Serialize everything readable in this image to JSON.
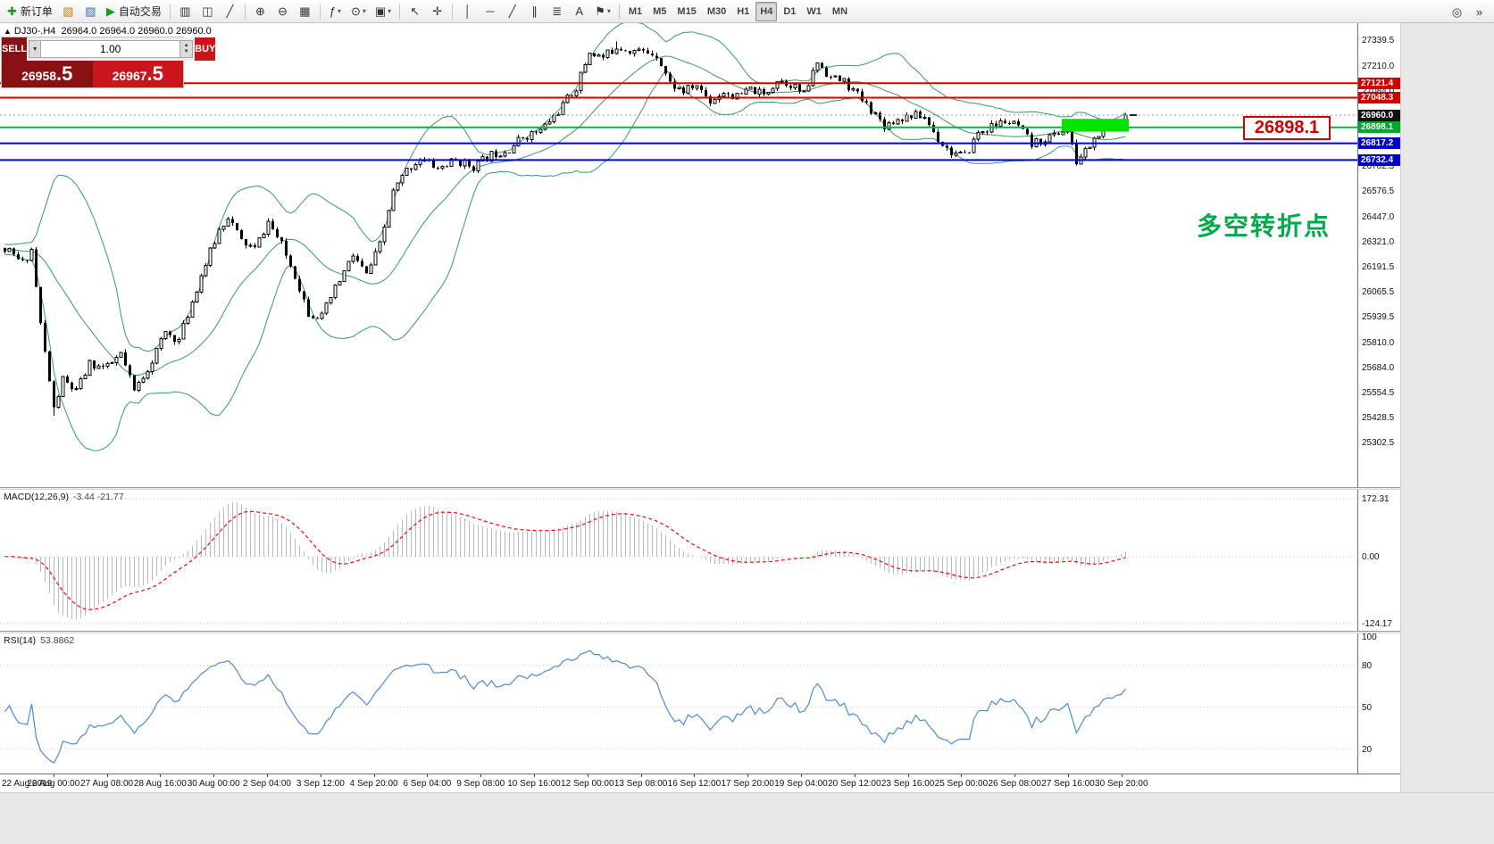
{
  "toolbar": {
    "groups": [
      [
        {
          "name": "new-order-button",
          "icon": "✚",
          "icon_color": "#1a9c1a",
          "icon_name": "new-order-icon",
          "label": "新订单"
        },
        {
          "name": "new-chart-button",
          "icon": "▧",
          "icon_color": "#b8860b",
          "icon_name": "new-chart-icon"
        },
        {
          "name": "profiles-button",
          "icon": "▨",
          "icon_color": "#4169aa",
          "icon_name": "profiles-icon"
        },
        {
          "name": "autotrading-button",
          "icon": "▶",
          "icon_color": "#15a015",
          "icon_name": "autotrading-play-icon",
          "label": "自动交易"
        }
      ],
      [
        {
          "name": "bar-chart-button",
          "icon": "▥",
          "icon_name": "bar-chart-icon"
        },
        {
          "name": "candlestick-chart-button",
          "icon": "◫",
          "icon_name": "candlestick-icon"
        },
        {
          "name": "line-chart-button",
          "icon": "╱",
          "icon_name": "line-chart-icon"
        }
      ],
      [
        {
          "name": "zoom-in-button",
          "icon": "⊕",
          "icon_name": "zoom-in-icon"
        },
        {
          "name": "zoom-out-button",
          "icon": "⊖",
          "icon_name": "zoom-out-icon"
        },
        {
          "name": "tile-windows-button",
          "icon": "▦",
          "icon_name": "tile-windows-icon"
        }
      ],
      [
        {
          "name": "indicators-button",
          "icon": "ƒ",
          "icon_name": "indicators-icon",
          "dropdown": true
        },
        {
          "name": "periods-button",
          "icon": "⊙",
          "icon_name": "clock-icon",
          "dropdown": true
        },
        {
          "name": "templates-button",
          "icon": "▣",
          "icon_name": "template-icon",
          "dropdown": true
        }
      ],
      [
        {
          "name": "cursor-button",
          "icon": "↖",
          "icon_name": "cursor-icon"
        },
        {
          "name": "crosshair-button",
          "icon": "✛",
          "icon_name": "crosshair-icon"
        }
      ],
      [
        {
          "name": "vertical-line-button",
          "icon": "│",
          "icon_name": "vertical-line-icon"
        },
        {
          "name": "horizontal-line-button",
          "icon": "─",
          "icon_name": "horizontal-line-icon"
        },
        {
          "name": "trendline-button",
          "icon": "╱",
          "icon_name": "trendline-icon"
        },
        {
          "name": "channel-button",
          "icon": "∥",
          "icon_name": "channel-icon"
        },
        {
          "name": "fibonacci-button",
          "icon": "≣",
          "icon_name": "fibonacci-icon"
        },
        {
          "name": "text-tool-button",
          "icon": "A",
          "icon_name": "text-tool-icon"
        },
        {
          "name": "arrows-tool-button",
          "icon": "⚑",
          "icon_name": "arrows-tool-icon",
          "dropdown": true
        }
      ],
      [
        {
          "name": "timeframe-m1-button",
          "tf": true,
          "label_only": "M1"
        },
        {
          "name": "timeframe-m5-button",
          "tf": true,
          "label_only": "M5"
        },
        {
          "name": "timeframe-m15-button",
          "tf": true,
          "label_only": "M15"
        },
        {
          "name": "timeframe-m30-button",
          "tf": true,
          "label_only": "M30"
        },
        {
          "name": "timeframe-h1-button",
          "tf": true,
          "label_only": "H1"
        },
        {
          "name": "timeframe-h4-button",
          "tf": true,
          "label_only": "H4",
          "active": true
        },
        {
          "name": "timeframe-d1-button",
          "tf": true,
          "label_only": "D1"
        },
        {
          "name": "timeframe-w1-button",
          "tf": true,
          "label_only": "W1"
        },
        {
          "name": "timeframe-mn-button",
          "tf": true,
          "label_only": "MN"
        }
      ]
    ],
    "right": [
      {
        "name": "toolbar-search-button",
        "icon": "◎",
        "icon_name": "search-icon"
      },
      {
        "name": "toolbar-more-button",
        "icon": "»",
        "icon_name": "overflow-icon"
      }
    ]
  },
  "chart": {
    "symbol_period": "DJ30-.H4",
    "tick_arrow": "▲",
    "ohlc_text": "26964.0 26964.0 26960.0 26960.0",
    "annotation": "多空转折点",
    "big_price_label": "26898.1",
    "trade_panel": {
      "sell_label": "SELL",
      "buy_label": "BUY",
      "volume": "1.00",
      "sell_price_main": "26958",
      "sell_price_big": ".5",
      "buy_price_main": "26967",
      "buy_price_big": ".5"
    },
    "axis_ticks": [
      "27339.5",
      "27210.0",
      "27084.0",
      "26702.5",
      "26576.5",
      "26447.0",
      "26321.0",
      "26191.5",
      "26065.5",
      "25939.5",
      "25810.0",
      "25684.0",
      "25554.5",
      "25428.5",
      "25302.5"
    ],
    "level_badges": [
      {
        "label": "27121.4",
        "color": "#d40000"
      },
      {
        "label": "27048.3",
        "color": "#d40000"
      },
      {
        "label": "26960.0",
        "color": "#111111"
      },
      {
        "label": "26898.1",
        "color": "#00a82d"
      },
      {
        "label": "26817.2",
        "color": "#0000cc"
      },
      {
        "label": "26732.4",
        "color": "#0000cc"
      }
    ],
    "hlines": [
      {
        "price": 27121.4,
        "color": "#d40000",
        "w": 2
      },
      {
        "price": 27048.3,
        "color": "#d40000",
        "w": 2
      },
      {
        "price": 26898.1,
        "color": "#00b83c",
        "w": 2
      },
      {
        "price": 26817.2,
        "color": "#0000dd",
        "w": 2
      },
      {
        "price": 26732.4,
        "color": "#0000dd",
        "w": 2
      }
    ]
  },
  "macd": {
    "label": "MACD(12,26,9)",
    "values": "-3.44 -21.77",
    "axis": [
      "172.31",
      "0.00",
      "-124.17"
    ]
  },
  "rsi": {
    "label": "RSI(14)",
    "value": "53.8862",
    "axis": [
      "100",
      "80",
      "50",
      "20"
    ]
  },
  "chart_data": {
    "type": "candlestick",
    "symbol": "DJ30-",
    "period": "H4",
    "ohlc_current": {
      "open": 26964.0,
      "high": 26964.0,
      "low": 26960.0,
      "close": 26960.0
    },
    "candle_count": 252,
    "y_axis_range": [
      25302.5,
      27339.5
    ],
    "price_path_anchors": [
      [
        0,
        26280
      ],
      [
        4,
        26210
      ],
      [
        6,
        26280
      ],
      [
        8,
        25900
      ],
      [
        11,
        25470
      ],
      [
        13,
        25620
      ],
      [
        16,
        25560
      ],
      [
        19,
        25700
      ],
      [
        23,
        25680
      ],
      [
        26,
        25750
      ],
      [
        29,
        25560
      ],
      [
        33,
        25720
      ],
      [
        36,
        25860
      ],
      [
        39,
        25820
      ],
      [
        44,
        26150
      ],
      [
        48,
        26380
      ],
      [
        50,
        26450
      ],
      [
        53,
        26320
      ],
      [
        56,
        26280
      ],
      [
        59,
        26420
      ],
      [
        62,
        26300
      ],
      [
        65,
        26150
      ],
      [
        68,
        25960
      ],
      [
        71,
        25940
      ],
      [
        74,
        26080
      ],
      [
        78,
        26250
      ],
      [
        81,
        26150
      ],
      [
        84,
        26300
      ],
      [
        87,
        26570
      ],
      [
        90,
        26680
      ],
      [
        93,
        26740
      ],
      [
        97,
        26690
      ],
      [
        101,
        26730
      ],
      [
        105,
        26700
      ],
      [
        109,
        26760
      ],
      [
        113,
        26790
      ],
      [
        116,
        26850
      ],
      [
        120,
        26880
      ],
      [
        124,
        26980
      ],
      [
        128,
        27100
      ],
      [
        131,
        27280
      ],
      [
        134,
        27250
      ],
      [
        137,
        27310
      ],
      [
        140,
        27290
      ],
      [
        143,
        27280
      ],
      [
        146,
        27270
      ],
      [
        149,
        27120
      ],
      [
        152,
        27080
      ],
      [
        155,
        27110
      ],
      [
        158,
        27030
      ],
      [
        161,
        27080
      ],
      [
        164,
        27050
      ],
      [
        167,
        27090
      ],
      [
        170,
        27060
      ],
      [
        173,
        27140
      ],
      [
        176,
        27120
      ],
      [
        179,
        27060
      ],
      [
        182,
        27230
      ],
      [
        185,
        27150
      ],
      [
        188,
        27130
      ],
      [
        191,
        27060
      ],
      [
        194,
        26990
      ],
      [
        197,
        26910
      ],
      [
        200,
        26940
      ],
      [
        203,
        26960
      ],
      [
        206,
        26950
      ],
      [
        209,
        26840
      ],
      [
        212,
        26770
      ],
      [
        215,
        26750
      ],
      [
        218,
        26870
      ],
      [
        221,
        26900
      ],
      [
        224,
        26930
      ],
      [
        227,
        26900
      ],
      [
        230,
        26810
      ],
      [
        233,
        26840
      ],
      [
        236,
        26870
      ],
      [
        238,
        26890
      ],
      [
        240,
        26720
      ],
      [
        242,
        26780
      ],
      [
        245,
        26860
      ],
      [
        248,
        26900
      ],
      [
        251,
        26960
      ]
    ],
    "wick_extremes": {
      "low_at_11": 25438,
      "high_at_137": 27332,
      "low_at_240": 26706
    },
    "levels": {
      "resistance": [
        27121.4,
        27048.3
      ],
      "pivot": 26898.1,
      "support": [
        26817.2,
        26732.4
      ],
      "last_price": 26960.0
    },
    "highlight_zone": {
      "from_index": 237,
      "to_index": 252,
      "price_top": 26941,
      "price_bottom": 26876,
      "color": "#00e400"
    },
    "indicators": {
      "bollinger": {
        "period": 20,
        "deviation": 2,
        "color": "#2f9e63"
      },
      "macd": {
        "fast": 12,
        "slow": 26,
        "signal": 9,
        "current_main": -3.44,
        "current_signal": -21.77,
        "scale": [
          172.31,
          0.0,
          -124.17
        ]
      },
      "rsi": {
        "period": 14,
        "current": 53.8862,
        "scale": [
          100,
          80,
          50,
          20
        ]
      }
    },
    "x_axis_labels": [
      "22 Aug 2019",
      "26 Aug 00:00",
      "27 Aug 08:00",
      "28 Aug 16:00",
      "30 Aug 00:00",
      "2 Sep 04:00",
      "3 Sep 12:00",
      "4 Sep 20:00",
      "6 Sep 04:00",
      "9 Sep 08:00",
      "10 Sep 16:00",
      "12 Sep 00:00",
      "13 Sep 08:00",
      "16 Sep 12:00",
      "17 Sep 20:00",
      "19 Sep 04:00",
      "20 Sep 12:00",
      "23 Sep 16:00",
      "25 Sep 00:00",
      "26 Sep 08:00",
      "27 Sep 16:00",
      "30 Sep 20:00"
    ]
  }
}
